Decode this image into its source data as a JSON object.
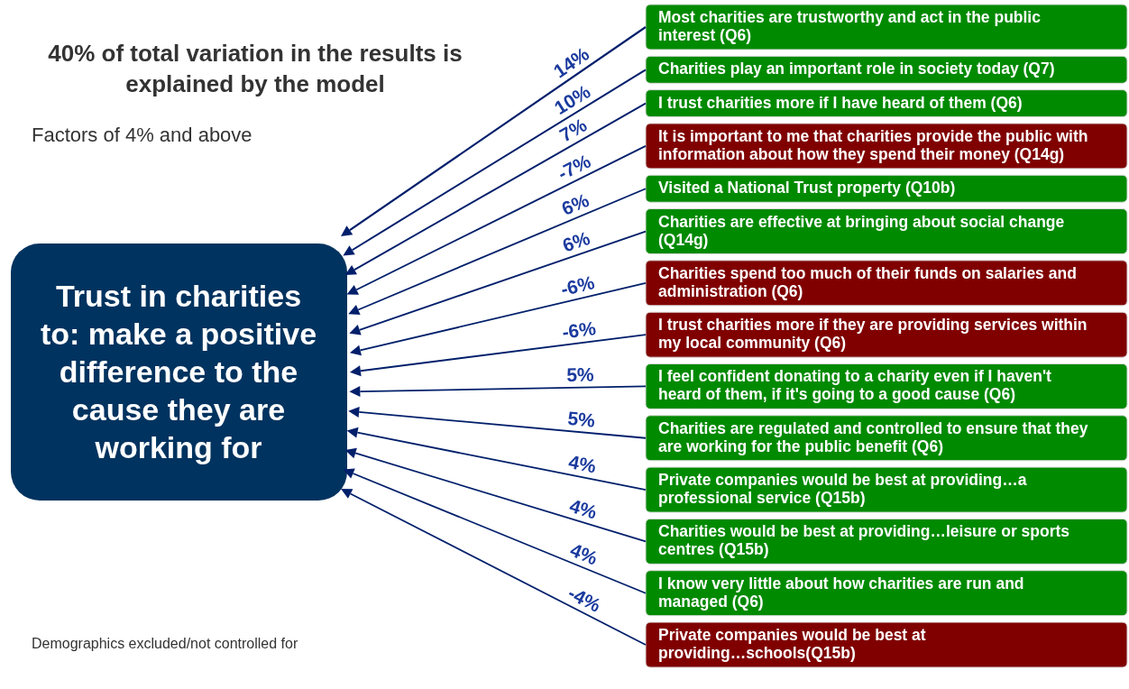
{
  "chart_data": {
    "type": "other",
    "title": "40% of total variation in the results is explained by the model",
    "subtitle": "Factors of 4% and above",
    "annotations": [
      "Trust in charities to: make a positive difference to the cause they are working for",
      "Demographics excluded/not controlled for"
    ],
    "categories": [
      "Most charities are trustworthy and act in the public interest (Q6)",
      "Charities play an important role in society today (Q7)",
      "I trust charities more if I have heard of them (Q6)",
      "It is important to me that charities provide the public with information about how they spend their money (Q14g)",
      "Visited a National Trust property (Q10b)",
      "Charities are effective at bringing about social change (Q14g)",
      "Charities spend too much of their funds on salaries and administration (Q6)",
      "I trust charities more if they are providing services within my local community (Q6)",
      "I feel confident donating to a charity even if I haven't heard of them, if it's going to a good cause (Q6)",
      "Charities are regulated and controlled to ensure that they are working for the public benefit (Q6)",
      "Private companies would be best at providing…a professional service (Q15b)",
      "Charities would be best at providing…leisure or sports centres (Q15b)",
      "I know very little about how charities are run and managed (Q6)",
      "Private companies would be best at providing…schools(Q15b)"
    ],
    "values": [
      14,
      10,
      7,
      -7,
      6,
      6,
      -6,
      -6,
      5,
      5,
      4,
      4,
      4,
      -4
    ],
    "value_labels": [
      "14%",
      "10%",
      "7%",
      "-7%",
      "6%",
      "6%",
      "-6%",
      "-6%",
      "5%",
      "5%",
      "4%",
      "4%",
      "4%",
      "-4%"
    ],
    "colors": [
      "#008a00",
      "#008a00",
      "#008a00",
      "#800000",
      "#008a00",
      "#008a00",
      "#800000",
      "#800000",
      "#008a00",
      "#008a00",
      "#008a00",
      "#008a00",
      "#008a00",
      "#800000"
    ]
  }
}
